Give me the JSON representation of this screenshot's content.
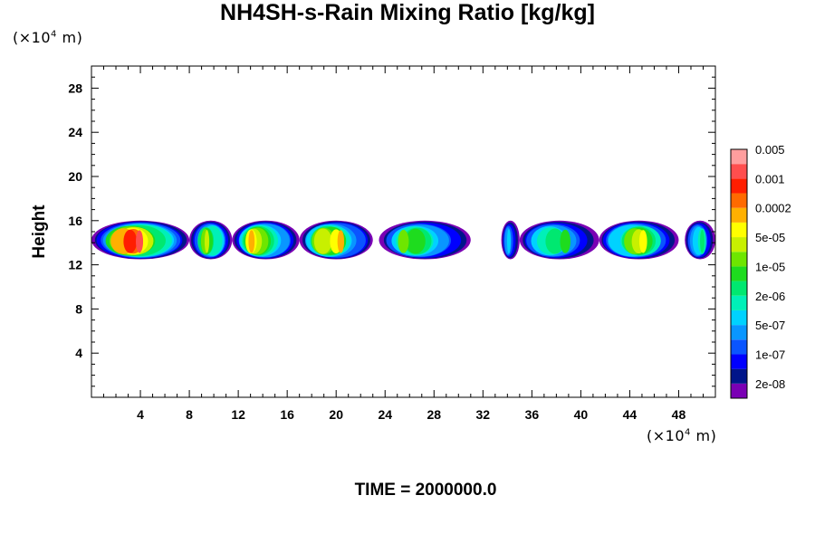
{
  "chart_data": {
    "type": "heatmap",
    "title": "NH4SH-s-Rain Mixing Ratio [kg/kg]",
    "ylabel": "Height",
    "xlabel": "",
    "x_unit": "(×10⁴ m)",
    "y_unit": "(×10⁴ m)",
    "x_unit_prefix": "(×10",
    "x_unit_exp": "4",
    "x_unit_suffix": " m)",
    "y_unit_prefix": "(×10",
    "y_unit_exp": "4",
    "y_unit_suffix": " m)",
    "xlim": [
      0,
      51
    ],
    "ylim": [
      0,
      30
    ],
    "x_ticks": [
      4,
      8,
      12,
      16,
      20,
      24,
      28,
      32,
      36,
      40,
      44,
      48
    ],
    "y_ticks": [
      4,
      8,
      12,
      16,
      20,
      24,
      28
    ],
    "footer": "TIME = 2000000.0",
    "colorbar": {
      "colors": [
        "#7a00b4",
        "#00158a",
        "#0000ff",
        "#0a55ff",
        "#0996ff",
        "#00d2ff",
        "#00f0b8",
        "#00e870",
        "#1edc1e",
        "#6ee600",
        "#c8f000",
        "#ffff00",
        "#ffb000",
        "#ff6a00",
        "#ff1e00",
        "#ff4e4e",
        "#ff9e9e"
      ],
      "labels": [
        "2e-08",
        "1e-07",
        "5e-07",
        "2e-06",
        "1e-05",
        "5e-05",
        "0.0002",
        "0.001",
        "0.005"
      ]
    },
    "cloud_layer": {
      "base_height": 12.5,
      "top_height": 16,
      "segments": [
        {
          "x": [
            0,
            8
          ],
          "peak_level": 15
        },
        {
          "x": [
            8,
            11.5
          ],
          "peak_level": 10
        },
        {
          "x": [
            11.5,
            17
          ],
          "peak_level": 12
        },
        {
          "x": [
            17,
            23
          ],
          "peak_level": 12
        },
        {
          "x": [
            23.5,
            31
          ],
          "peak_level": 9
        },
        {
          "x": [
            33.5,
            35
          ],
          "peak_level": 5
        },
        {
          "x": [
            35,
            41.5
          ],
          "peak_level": 8
        },
        {
          "x": [
            41.5,
            48
          ],
          "peak_level": 11
        },
        {
          "x": [
            48.5,
            51
          ],
          "peak_level": 7
        }
      ]
    }
  }
}
